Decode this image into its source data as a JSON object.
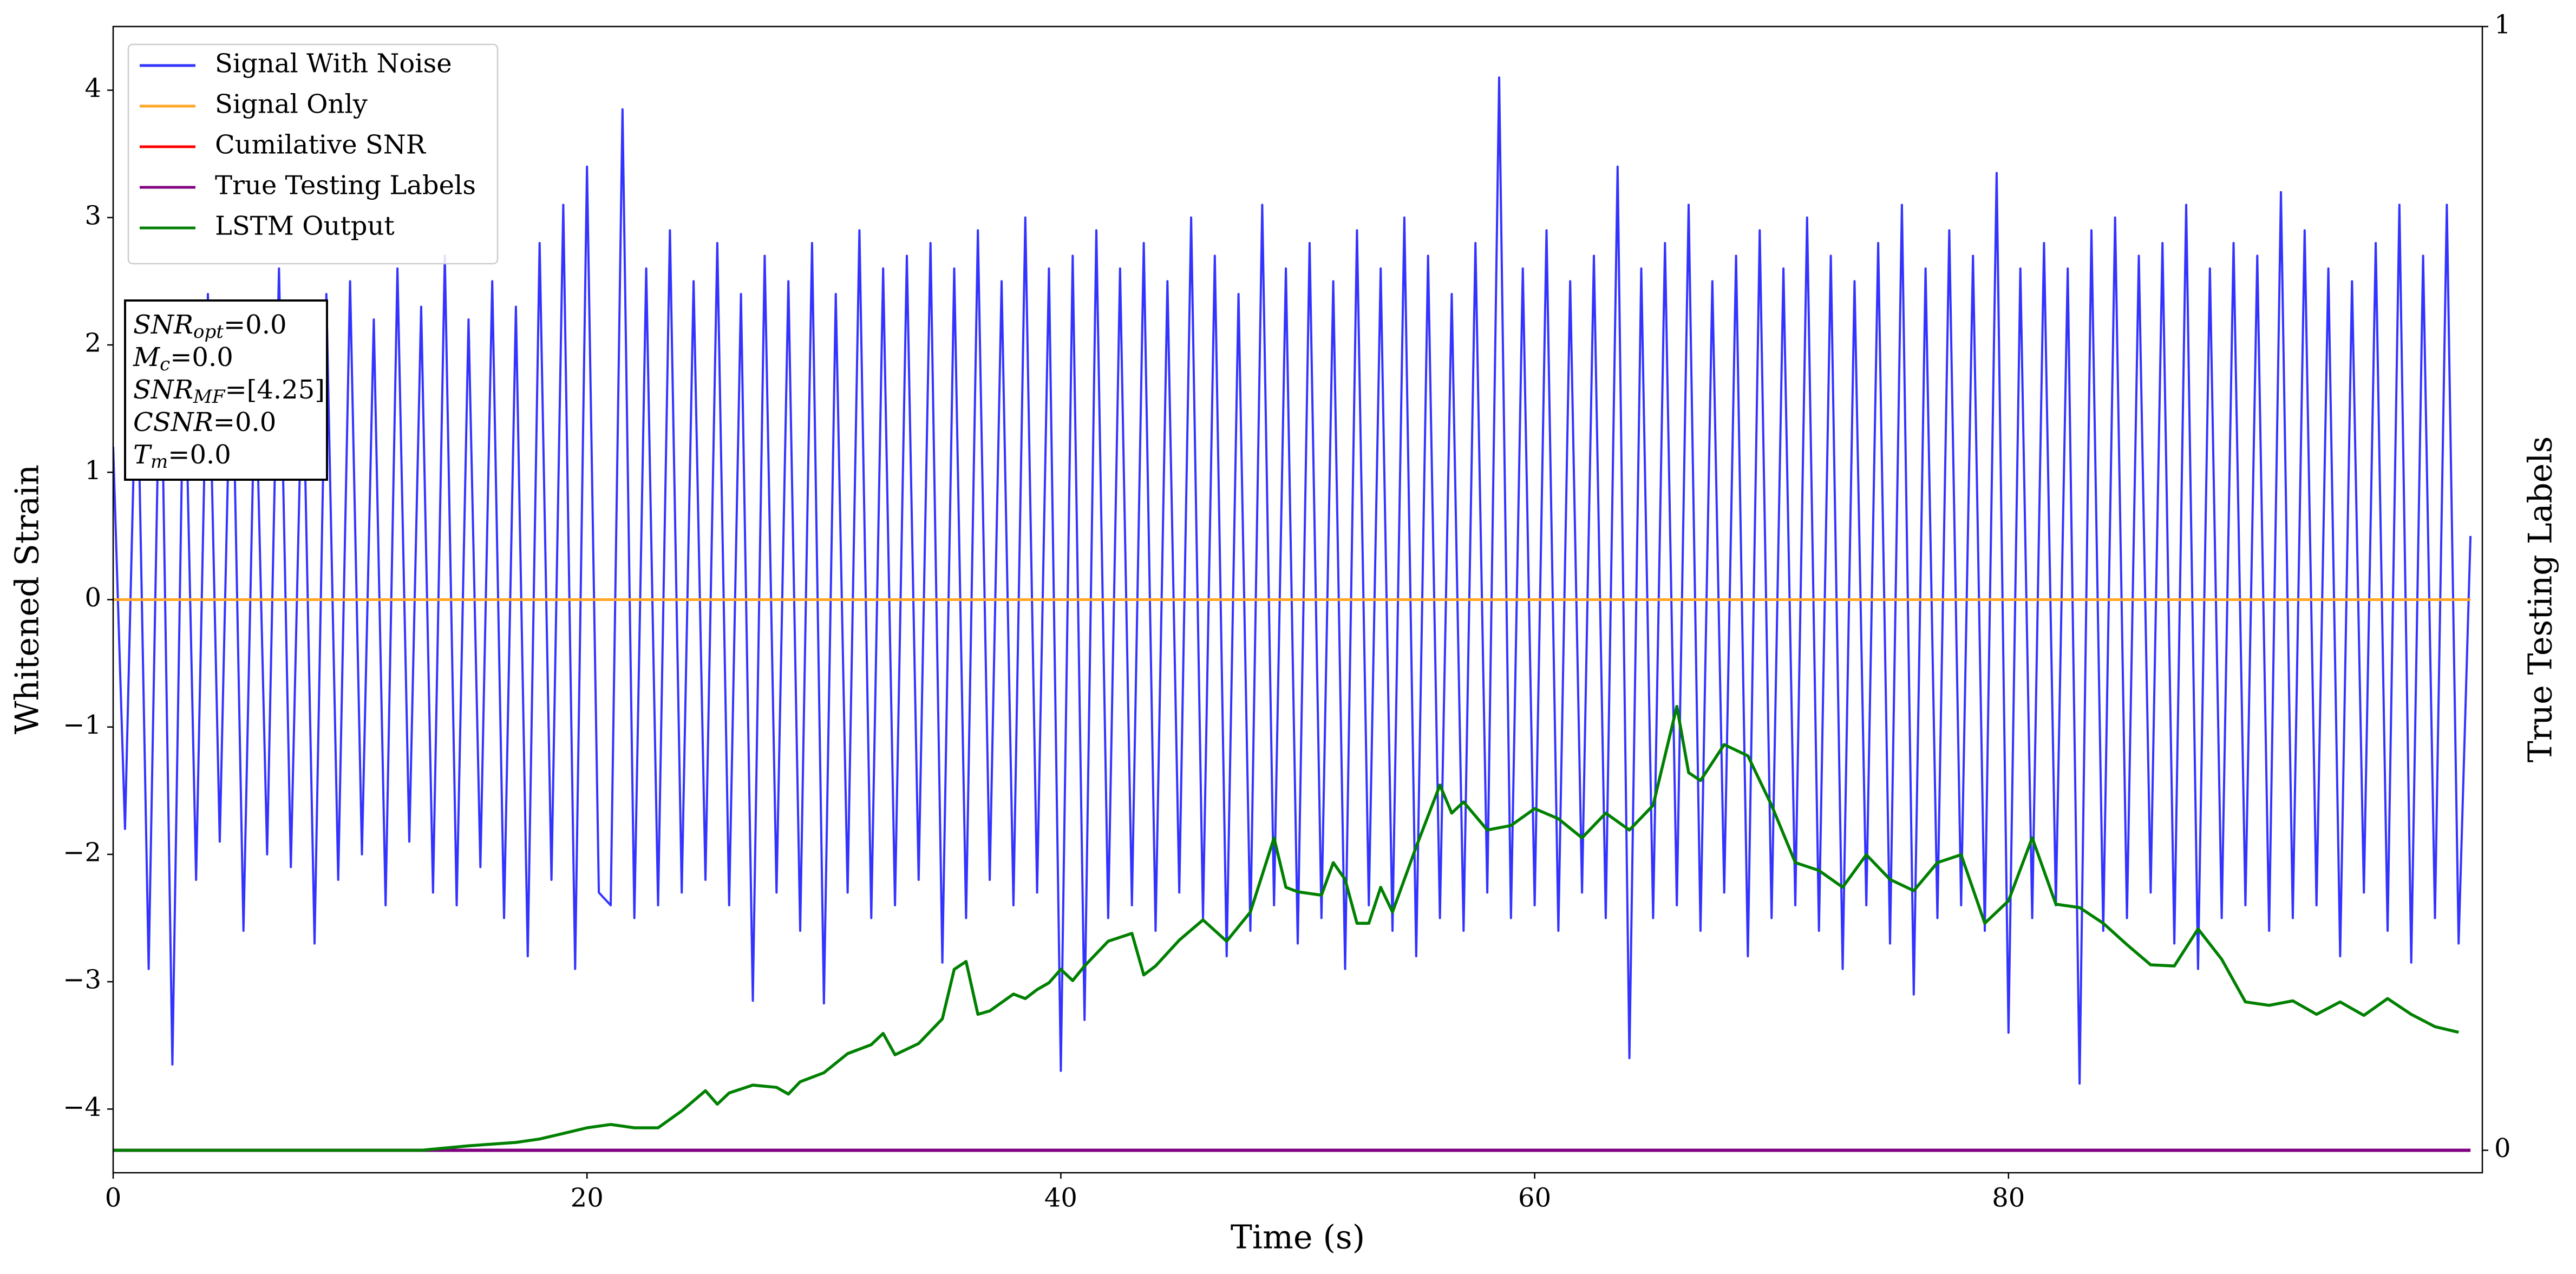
{
  "chart_data": {
    "type": "line",
    "xlabel": "Time (s)",
    "ylabel": "Whitened Strain",
    "y2label": "True Testing Labels",
    "xlim": [
      0,
      100
    ],
    "ylim": [
      -4.5,
      4.5
    ],
    "y2lim": [
      -0.02,
      1
    ],
    "xticks": [
      0,
      20,
      40,
      60,
      80
    ],
    "yticks": [
      {
        "value": -4,
        "label": "−4"
      },
      {
        "value": -3,
        "label": "−3"
      },
      {
        "value": -2,
        "label": "−2"
      },
      {
        "value": -1,
        "label": "−1"
      },
      0,
      1,
      2,
      3,
      4
    ],
    "y2ticks": [
      0,
      1
    ],
    "grid": false,
    "legend": "upper left",
    "series": [
      {
        "name": "Signal With Noise",
        "color": "#3333ff",
        "x": [
          0,
          0.5,
          1,
          1.5,
          2,
          2.5,
          3,
          3.5,
          4,
          4.5,
          5,
          5.5,
          6,
          6.5,
          7,
          7.5,
          8,
          8.5,
          9,
          9.5,
          10,
          10.5,
          11,
          11.5,
          12,
          12.5,
          13,
          13.5,
          14,
          14.5,
          15,
          15.5,
          16,
          16.5,
          17,
          17.5,
          18,
          18.5,
          19,
          19.5,
          20,
          20.5,
          21,
          21.5,
          22,
          22.5,
          23,
          23.5,
          24,
          24.5,
          25,
          25.5,
          26,
          26.5,
          27,
          27.5,
          28,
          28.5,
          29,
          29.5,
          30,
          30.5,
          31,
          31.5,
          32,
          32.5,
          33,
          33.5,
          34,
          34.5,
          35,
          35.5,
          36,
          36.5,
          37,
          37.5,
          38,
          38.5,
          39,
          39.5,
          40,
          40.5,
          41,
          41.5,
          42,
          42.5,
          43,
          43.5,
          44,
          44.5,
          45,
          45.5,
          46,
          46.5,
          47,
          47.5,
          48,
          48.5,
          49,
          49.5,
          50,
          50.5,
          51,
          51.5,
          52,
          52.5,
          53,
          53.5,
          54,
          54.5,
          55,
          55.5,
          56,
          56.5,
          57,
          57.5,
          58,
          58.5,
          59,
          59.5,
          60,
          60.5,
          61,
          61.5,
          62,
          62.5,
          63,
          63.5,
          64,
          64.5,
          65,
          65.5,
          66,
          66.5,
          67,
          67.5,
          68,
          68.5,
          69,
          69.5,
          70,
          70.5,
          71,
          71.5,
          72,
          72.5,
          73,
          73.5,
          74,
          74.5,
          75,
          75.5,
          76,
          76.5,
          77,
          77.5,
          78,
          78.5,
          79,
          79.5,
          80,
          80.5,
          81,
          81.5,
          82,
          82.5,
          83,
          83.5,
          84,
          84.5,
          85,
          85.5,
          86,
          86.5,
          87,
          87.5,
          88,
          88.5,
          89,
          89.5,
          90,
          90.5,
          91,
          91.5,
          92,
          92.5,
          93,
          93.5,
          94,
          94.5,
          95,
          95.5,
          96,
          96.5,
          97,
          97.5,
          98,
          98.5,
          99,
          99.5
        ],
        "values": [
          1.2,
          -1.8,
          2.1,
          -2.9,
          2.3,
          -3.65,
          2.2,
          -2.2,
          2.4,
          -1.9,
          2.3,
          -2.6,
          1.9,
          -2.0,
          2.6,
          -2.1,
          2.0,
          -2.7,
          2.4,
          -2.2,
          2.5,
          -2.0,
          2.2,
          -2.4,
          2.6,
          -1.9,
          2.3,
          -2.3,
          2.7,
          -2.4,
          2.2,
          -2.1,
          2.5,
          -2.5,
          2.3,
          -2.8,
          2.8,
          -2.2,
          3.1,
          -2.9,
          3.4,
          -2.3,
          -2.4,
          3.85,
          -2.5,
          2.6,
          -2.4,
          2.9,
          -2.3,
          2.5,
          -2.2,
          2.8,
          -2.4,
          2.4,
          -3.15,
          2.7,
          -2.3,
          2.5,
          -2.6,
          2.8,
          -3.17,
          2.4,
          -2.3,
          2.9,
          -2.5,
          2.6,
          -2.4,
          2.7,
          -2.2,
          2.8,
          -2.85,
          2.6,
          -2.5,
          2.9,
          -2.2,
          2.5,
          -2.4,
          3.0,
          -2.3,
          2.6,
          -3.7,
          2.7,
          -3.3,
          2.9,
          -2.5,
          2.6,
          -2.4,
          2.8,
          -2.6,
          2.5,
          -2.3,
          3.0,
          -2.5,
          2.7,
          -2.8,
          2.4,
          -2.6,
          3.1,
          -2.4,
          2.6,
          -2.7,
          2.8,
          -2.5,
          2.5,
          -2.9,
          2.9,
          -2.4,
          2.6,
          -2.6,
          3.0,
          -2.8,
          2.7,
          -2.5,
          2.4,
          -2.6,
          2.8,
          -2.3,
          4.1,
          -2.5,
          2.6,
          -2.4,
          2.9,
          -2.6,
          2.5,
          -2.3,
          2.7,
          -2.5,
          3.4,
          -3.6,
          2.6,
          -2.5,
          2.8,
          -2.4,
          3.1,
          -2.6,
          2.5,
          -2.3,
          2.7,
          -2.8,
          2.9,
          -2.5,
          2.6,
          -2.4,
          3.0,
          -2.6,
          2.7,
          -2.9,
          2.5,
          -2.4,
          2.8,
          -2.7,
          3.1,
          -3.1,
          2.6,
          -2.5,
          2.9,
          -2.4,
          2.7,
          -2.6,
          3.35,
          -3.4,
          2.6,
          -2.5,
          2.8,
          -2.4,
          2.6,
          -3.8,
          2.9,
          -2.6,
          3.0,
          -2.5,
          2.7,
          -2.3,
          2.8,
          -2.7,
          3.1,
          -2.9,
          2.6,
          -2.5,
          2.8,
          -2.4,
          2.7,
          -2.6,
          3.2,
          -2.5,
          2.9,
          -2.4,
          2.6,
          -2.8,
          2.5,
          -2.3,
          2.8,
          -2.6,
          3.1,
          -2.85,
          2.7,
          -2.5,
          3.1,
          -2.7,
          0.5
        ]
      },
      {
        "name": "Signal Only",
        "color": "#ffa726",
        "x": [
          0,
          99.5
        ],
        "values": [
          0,
          0
        ]
      },
      {
        "name": "Cumilative SNR",
        "color": "#ff0000",
        "axis": "y2",
        "x": [
          0,
          99.5
        ],
        "values": [
          0,
          0
        ]
      },
      {
        "name": "True Testing Labels",
        "color": "#800080",
        "axis": "y2",
        "x": [
          0,
          99.5
        ],
        "values": [
          0,
          0
        ]
      },
      {
        "name": "LSTM Output",
        "color": "#008000",
        "axis": "y2",
        "x": [
          0,
          13,
          15,
          17,
          18,
          19,
          20,
          21,
          22,
          23,
          24,
          25,
          25.5,
          26,
          27,
          28,
          28.5,
          29,
          30,
          31,
          32,
          32.5,
          33,
          34,
          35,
          35.5,
          36,
          36.5,
          37,
          38,
          38.5,
          39,
          39.5,
          40,
          40.5,
          41,
          42,
          43,
          43.5,
          44,
          45,
          46,
          47,
          48,
          49,
          49.5,
          50,
          51,
          51.5,
          52,
          52.5,
          53,
          53.5,
          54,
          55,
          56,
          56.5,
          57,
          58,
          59,
          60,
          61,
          62,
          63,
          64,
          65,
          66,
          66.5,
          67,
          68,
          69,
          70,
          71,
          72,
          73,
          74,
          75,
          76,
          77,
          78,
          79,
          80,
          81,
          82,
          83,
          84,
          85,
          86,
          87,
          88,
          89,
          90,
          91,
          92,
          93,
          94,
          95,
          96,
          97,
          98,
          99
        ],
        "values": [
          0,
          0,
          0.004,
          0.007,
          0.01,
          0.015,
          0.02,
          0.023,
          0.02,
          0.02,
          0.035,
          0.053,
          0.041,
          0.051,
          0.058,
          0.056,
          0.05,
          0.061,
          0.069,
          0.086,
          0.094,
          0.104,
          0.085,
          0.095,
          0.117,
          0.161,
          0.168,
          0.121,
          0.124,
          0.139,
          0.135,
          0.143,
          0.149,
          0.161,
          0.151,
          0.164,
          0.186,
          0.193,
          0.156,
          0.164,
          0.187,
          0.205,
          0.186,
          0.212,
          0.278,
          0.234,
          0.23,
          0.227,
          0.256,
          0.241,
          0.202,
          0.202,
          0.234,
          0.212,
          0.27,
          0.325,
          0.3,
          0.31,
          0.285,
          0.289,
          0.304,
          0.295,
          0.278,
          0.3,
          0.285,
          0.307,
          0.395,
          0.336,
          0.329,
          0.361,
          0.351,
          0.307,
          0.256,
          0.249,
          0.234,
          0.263,
          0.241,
          0.231,
          0.256,
          0.263,
          0.202,
          0.222,
          0.278,
          0.219,
          0.216,
          0.202,
          0.183,
          0.165,
          0.164,
          0.197,
          0.17,
          0.132,
          0.129,
          0.133,
          0.121,
          0.132,
          0.12,
          0.135,
          0.121,
          0.11,
          0.105
        ]
      }
    ],
    "annotation": [
      {
        "symbol": "SNR",
        "subscript": "opt",
        "text": "=0.0"
      },
      {
        "symbol": "M",
        "subscript": "c",
        "text": "=0.0"
      },
      {
        "symbol": "SNR",
        "subscript": "MF",
        "text": "=[4.25]"
      },
      {
        "symbol": "CSNR",
        "text": "=0.0"
      },
      {
        "symbol": "T",
        "subscript": "m",
        "text": "=0.0"
      }
    ]
  }
}
